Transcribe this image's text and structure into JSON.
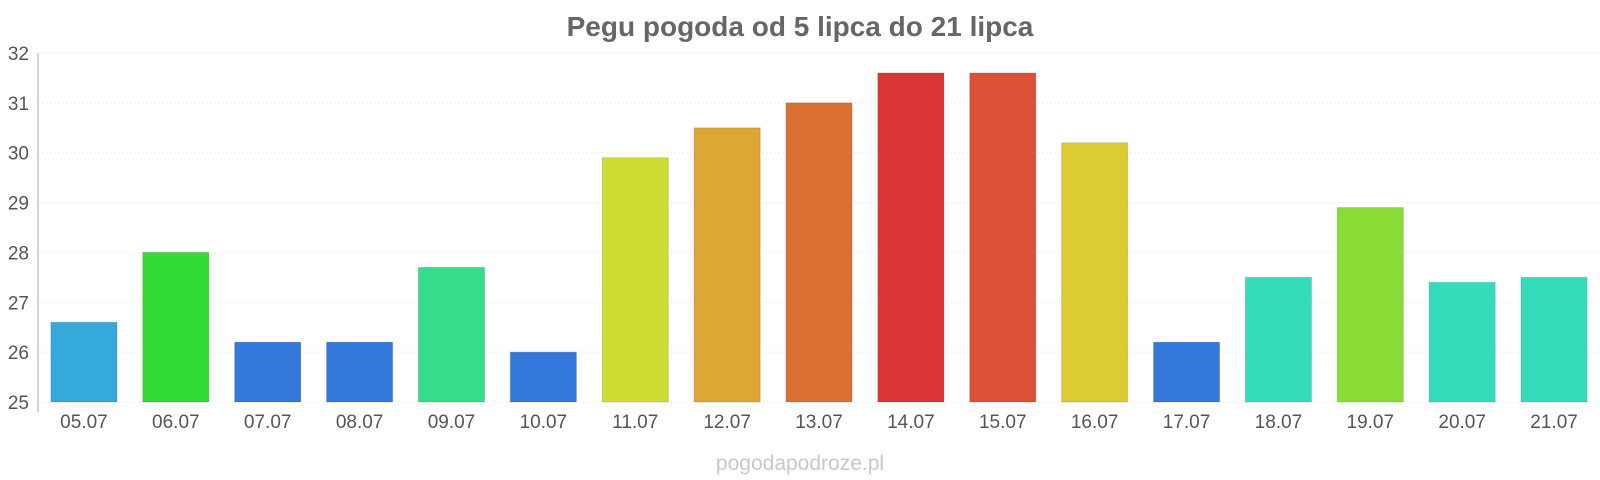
{
  "chart_data": {
    "type": "bar",
    "title": "Pegu pogoda od 5 lipca do 21 lipca",
    "xlabel": "",
    "ylabel": "",
    "categories": [
      "05.07",
      "06.07",
      "07.07",
      "08.07",
      "09.07",
      "10.07",
      "11.07",
      "12.07",
      "13.07",
      "14.07",
      "15.07",
      "16.07",
      "17.07",
      "18.07",
      "19.07",
      "20.07",
      "21.07"
    ],
    "values": [
      26.6,
      28.0,
      26.2,
      26.2,
      27.7,
      26.0,
      29.9,
      30.5,
      31.0,
      31.6,
      31.6,
      30.2,
      26.2,
      27.5,
      28.9,
      27.4,
      27.5
    ],
    "colors": [
      "#35a8dc",
      "#33dc35",
      "#3578dc",
      "#3578dc",
      "#35dc89",
      "#3578dc",
      "#cedc33",
      "#dca733",
      "#dc7033",
      "#dc3535",
      "#dc5135",
      "#dccb33",
      "#3578dc",
      "#35dcbb",
      "#89dc35",
      "#35dcbb",
      "#35dcbb"
    ],
    "ylim": [
      25,
      32
    ],
    "yticks": [
      25,
      26,
      27,
      28,
      29,
      30,
      31,
      32
    ],
    "grid": true,
    "legend": "none"
  },
  "footer": {
    "watermark": "pogodapodroze.pl"
  }
}
